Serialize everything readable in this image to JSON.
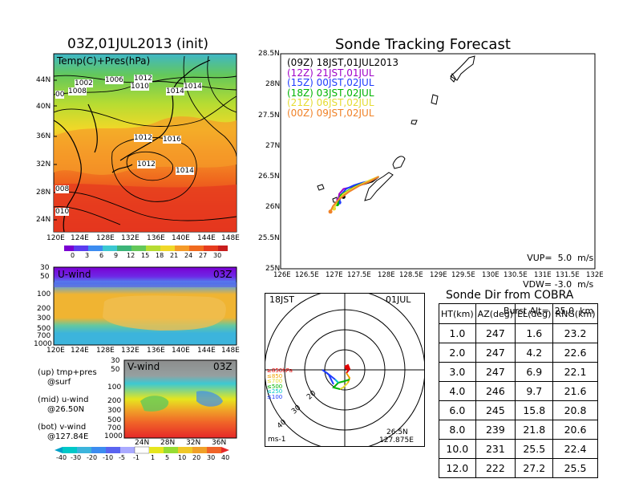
{
  "left": {
    "title": "03Z,01JUL2013 (init)",
    "map_label": "Temp(C)+Pres(hPa)",
    "lat_labels": [
      "44N",
      "40N",
      "36N",
      "32N",
      "28N",
      "24N"
    ],
    "lon_labels": [
      "120E",
      "124E",
      "128E",
      "132E",
      "136E",
      "140E",
      "144E",
      "148E"
    ],
    "isobar_labels": [
      "1002",
      "1006",
      "1008",
      "1010",
      "1012",
      "1014",
      "1014",
      "1012",
      "1016",
      "1012",
      "1014",
      "008",
      "010",
      "00"
    ],
    "temp_colorbar": [
      "0",
      "3",
      "6",
      "9",
      "12",
      "15",
      "18",
      "21",
      "24",
      "27",
      "30"
    ],
    "uwind_label": "U-wind",
    "uwind_time": "03Z",
    "vwind_label": "V-wind",
    "vwind_time": "03Z",
    "pres_levels": [
      "30",
      "50",
      "100",
      "200",
      "300",
      "500",
      "700",
      "1000"
    ],
    "vwind_lat_labels": [
      "24N",
      "28N",
      "32N",
      "36N"
    ],
    "wind_colorbar": [
      "-40",
      "-30",
      "-20",
      "-10",
      "-5",
      "-1",
      "1",
      "5",
      "10",
      "20",
      "30",
      "40"
    ],
    "legend_lines": [
      "(up) tmp+pres",
      "@surf",
      "(mid) u-wind",
      "@26.50N",
      "(bot) v-wind",
      "@127.84E"
    ]
  },
  "track": {
    "title": "Sonde Tracking Forecast",
    "lat_labels": [
      "28.5N",
      "28N",
      "27.5N",
      "27N",
      "26.5N",
      "26N",
      "25.5N",
      "25N"
    ],
    "lon_labels": [
      "126E",
      "126.5E",
      "127E",
      "127.5E",
      "128E",
      "128.5E",
      "129E",
      "129.5E",
      "130E",
      "130.5E",
      "131E",
      "131.5E",
      "132E"
    ],
    "legend": [
      {
        "label": "(09Z)  18JST,01JUL2013",
        "color": "#000000"
      },
      {
        "label": "(12Z)  21JST,01JUL",
        "color": "#a000c8"
      },
      {
        "label": "(15Z)  00JST,02JUL",
        "color": "#1e3cff"
      },
      {
        "label": "(18Z)  03JST,02JUL",
        "color": "#00b400"
      },
      {
        "label": "(21Z)  06JST,02JUL",
        "color": "#e6dc32"
      },
      {
        "label": "(00Z)  09JST,02JUL",
        "color": "#f08228"
      }
    ],
    "params": [
      "VUP=  5.0  m/s",
      "VDW= -3.0  m/s",
      "Burst Alt=  25.0  km"
    ]
  },
  "polar": {
    "time": "18JST",
    "date": "01JUL",
    "ring_labels": [
      "20",
      "30",
      "40"
    ],
    "layer_labels": [
      {
        "text": "≥850hPa",
        "color": "#e00000"
      },
      {
        "text": "≤850",
        "color": "#f0a000"
      },
      {
        "text": "≤700",
        "color": "#e6dc32"
      },
      {
        "text": "≤500",
        "color": "#00b400"
      },
      {
        "text": "≤250",
        "color": "#00c8c8"
      },
      {
        "text": "≤100",
        "color": "#1e3cff"
      }
    ],
    "unit": "ms-1",
    "loc_lat": "26.5N",
    "loc_lon": "127.875E"
  },
  "table": {
    "title": "Sonde Dir from COBRA",
    "headers": [
      "HT(km)",
      "AZ(deg)",
      "EL(deg)",
      "RNG(km)"
    ],
    "rows": [
      [
        "1.0",
        "247",
        "1.6",
        "23.2"
      ],
      [
        "2.0",
        "247",
        "4.2",
        "22.6"
      ],
      [
        "3.0",
        "247",
        "6.9",
        "22.1"
      ],
      [
        "4.0",
        "246",
        "9.7",
        "21.6"
      ],
      [
        "6.0",
        "245",
        "15.8",
        "20.8"
      ],
      [
        "8.0",
        "239",
        "21.8",
        "20.6"
      ],
      [
        "10.0",
        "231",
        "25.5",
        "22.4"
      ],
      [
        "12.0",
        "222",
        "27.2",
        "25.5"
      ]
    ]
  },
  "chart_data": [
    {
      "type": "heatmap",
      "title": "03Z,01JUL2013 (init)",
      "label": "Temp(C)+Pres(hPa)",
      "x_range": [
        "120E",
        "148E"
      ],
      "y_range": [
        "22N",
        "47N"
      ],
      "colorbar": [
        0,
        3,
        6,
        9,
        12,
        15,
        18,
        21,
        24,
        27,
        30
      ]
    },
    {
      "type": "heatmap",
      "title": "U-wind",
      "time": "03Z",
      "x_range": [
        "120E",
        "148E"
      ],
      "y_levels_hPa": [
        30,
        50,
        100,
        200,
        300,
        500,
        700,
        1000
      ]
    },
    {
      "type": "heatmap",
      "title": "V-wind",
      "time": "03Z",
      "x_labels": [
        "24N",
        "28N",
        "32N",
        "36N"
      ],
      "y_levels_hPa": [
        30,
        50,
        100,
        200,
        300,
        500,
        700,
        1000
      ],
      "colorbar": [
        -40,
        -30,
        -20,
        -10,
        -5,
        -1,
        1,
        5,
        10,
        20,
        30,
        40
      ]
    },
    {
      "type": "line",
      "title": "Sonde Tracking Forecast",
      "xlim": [
        126,
        132
      ],
      "ylim": [
        25,
        28.5
      ],
      "series": [
        {
          "name": "(09Z) 18JST,01JUL2013",
          "x": [
            127.875,
            127.75,
            127.6,
            127.45,
            127.35,
            127.22,
            127.2
          ],
          "y": [
            26.5,
            26.42,
            26.38,
            26.35,
            26.28,
            26.22,
            26.17
          ]
        },
        {
          "name": "(12Z) 21JST,01JUL",
          "x": [
            127.875,
            127.7,
            127.5,
            127.35,
            127.2,
            127.12,
            127.1
          ],
          "y": [
            26.5,
            26.42,
            26.38,
            26.33,
            26.3,
            26.22,
            26.12
          ]
        },
        {
          "name": "(15Z) 00JST,02JUL",
          "x": [
            127.875,
            127.7,
            127.55,
            127.4,
            127.25,
            127.15,
            127.12
          ],
          "y": [
            26.5,
            26.43,
            26.4,
            26.36,
            26.3,
            26.2,
            26.08
          ]
        },
        {
          "name": "(18Z) 03JST,02JUL",
          "x": [
            127.875,
            127.75,
            127.6,
            127.45,
            127.3,
            127.15,
            127.08
          ],
          "y": [
            26.5,
            26.45,
            26.4,
            26.35,
            26.28,
            26.2,
            26.05
          ]
        },
        {
          "name": "(21Z) 06JST,02JUL",
          "x": [
            127.875,
            127.7,
            127.55,
            127.4,
            127.2,
            127.08,
            127.02
          ],
          "y": [
            26.5,
            26.44,
            26.38,
            26.32,
            26.22,
            26.1,
            25.98
          ]
        },
        {
          "name": "(00Z) 09JST,02JUL",
          "x": [
            127.875,
            127.7,
            127.5,
            127.3,
            127.1,
            127.0,
            126.95
          ],
          "y": [
            26.5,
            26.42,
            26.35,
            26.25,
            26.12,
            26.02,
            25.93
          ]
        }
      ]
    },
    {
      "type": "table",
      "title": "Sonde Dir from COBRA",
      "columns": [
        "HT(km)",
        "AZ(deg)",
        "EL(deg)",
        "RNG(km)"
      ],
      "rows": [
        [
          1.0,
          247,
          1.6,
          23.2
        ],
        [
          2.0,
          247,
          4.2,
          22.6
        ],
        [
          3.0,
          247,
          6.9,
          22.1
        ],
        [
          4.0,
          246,
          9.7,
          21.6
        ],
        [
          6.0,
          245,
          15.8,
          20.8
        ],
        [
          8.0,
          239,
          21.8,
          20.6
        ],
        [
          10.0,
          231,
          25.5,
          22.4
        ],
        [
          12.0,
          222,
          27.2,
          25.5
        ]
      ]
    }
  ]
}
